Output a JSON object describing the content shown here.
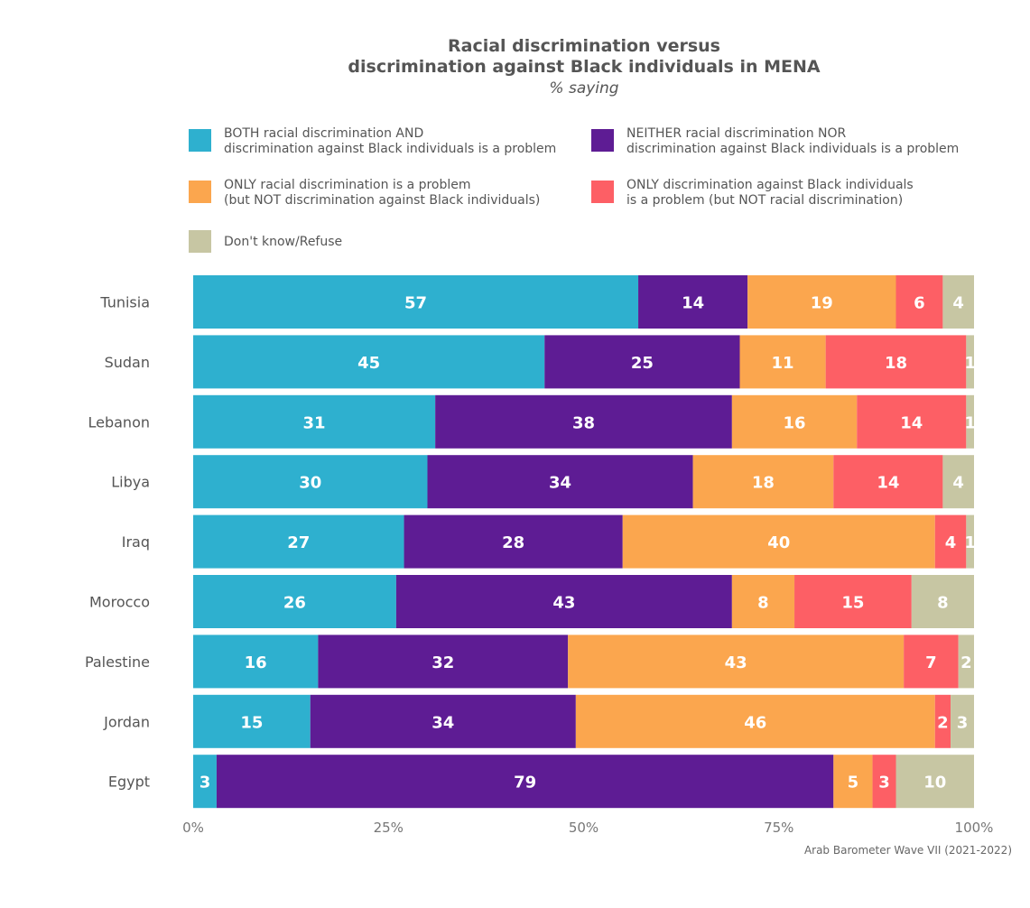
{
  "chart_data": {
    "type": "bar",
    "orientation": "horizontal",
    "stacked": true,
    "title_lines": [
      "Racial discrimination versus",
      "discrimination against Black individuals in MENA"
    ],
    "subtitle": "% saying",
    "source": "Arab Barometer Wave VII (2021-2022)",
    "xlim": [
      0,
      100
    ],
    "x_ticks": [
      "0%",
      "25%",
      "50%",
      "75%",
      "100%"
    ],
    "grid": false,
    "legend_position": "top",
    "categories": [
      "Tunisia",
      "Sudan",
      "Lebanon",
      "Libya",
      "Iraq",
      "Morocco",
      "Palestine",
      "Jordan",
      "Egypt"
    ],
    "series": [
      {
        "name": "BOTH racial discrimination AND discrimination against Black individuals is a problem",
        "legend_lines": [
          "BOTH racial discrimination AND",
          "discrimination against Black individuals is a problem"
        ],
        "color": "#2EB0CF",
        "values": [
          57,
          45,
          31,
          30,
          27,
          26,
          16,
          15,
          3
        ]
      },
      {
        "name": "NEITHER racial discrimination NOR discrimination against Black individuals is a problem",
        "legend_lines": [
          "NEITHER racial discrimination NOR",
          "discrimination against Black individuals is a problem"
        ],
        "color": "#5E1C94",
        "values": [
          14,
          25,
          38,
          34,
          28,
          43,
          32,
          34,
          79
        ]
      },
      {
        "name": "ONLY racial discrimination is a problem (but NOT discrimination against Black individuals)",
        "legend_lines": [
          "ONLY racial discrimination is a problem",
          "(but NOT discrimination against Black individuals)"
        ],
        "color": "#FBA64E",
        "values": [
          19,
          11,
          16,
          18,
          40,
          8,
          43,
          46,
          5
        ]
      },
      {
        "name": "ONLY discrimination against Black individuals is a problem (but NOT racial discrimination)",
        "legend_lines": [
          "ONLY discrimination against Black individuals",
          "is a problem (but NOT racial discrimination)"
        ],
        "color": "#FD5F65",
        "values": [
          6,
          18,
          14,
          14,
          4,
          15,
          7,
          2,
          3
        ]
      },
      {
        "name": "Don't know/Refuse",
        "legend_lines": [
          "Don't know/Refuse"
        ],
        "color": "#C7C6A3",
        "values": [
          4,
          1,
          1,
          4,
          1,
          8,
          2,
          3,
          10
        ]
      }
    ]
  }
}
